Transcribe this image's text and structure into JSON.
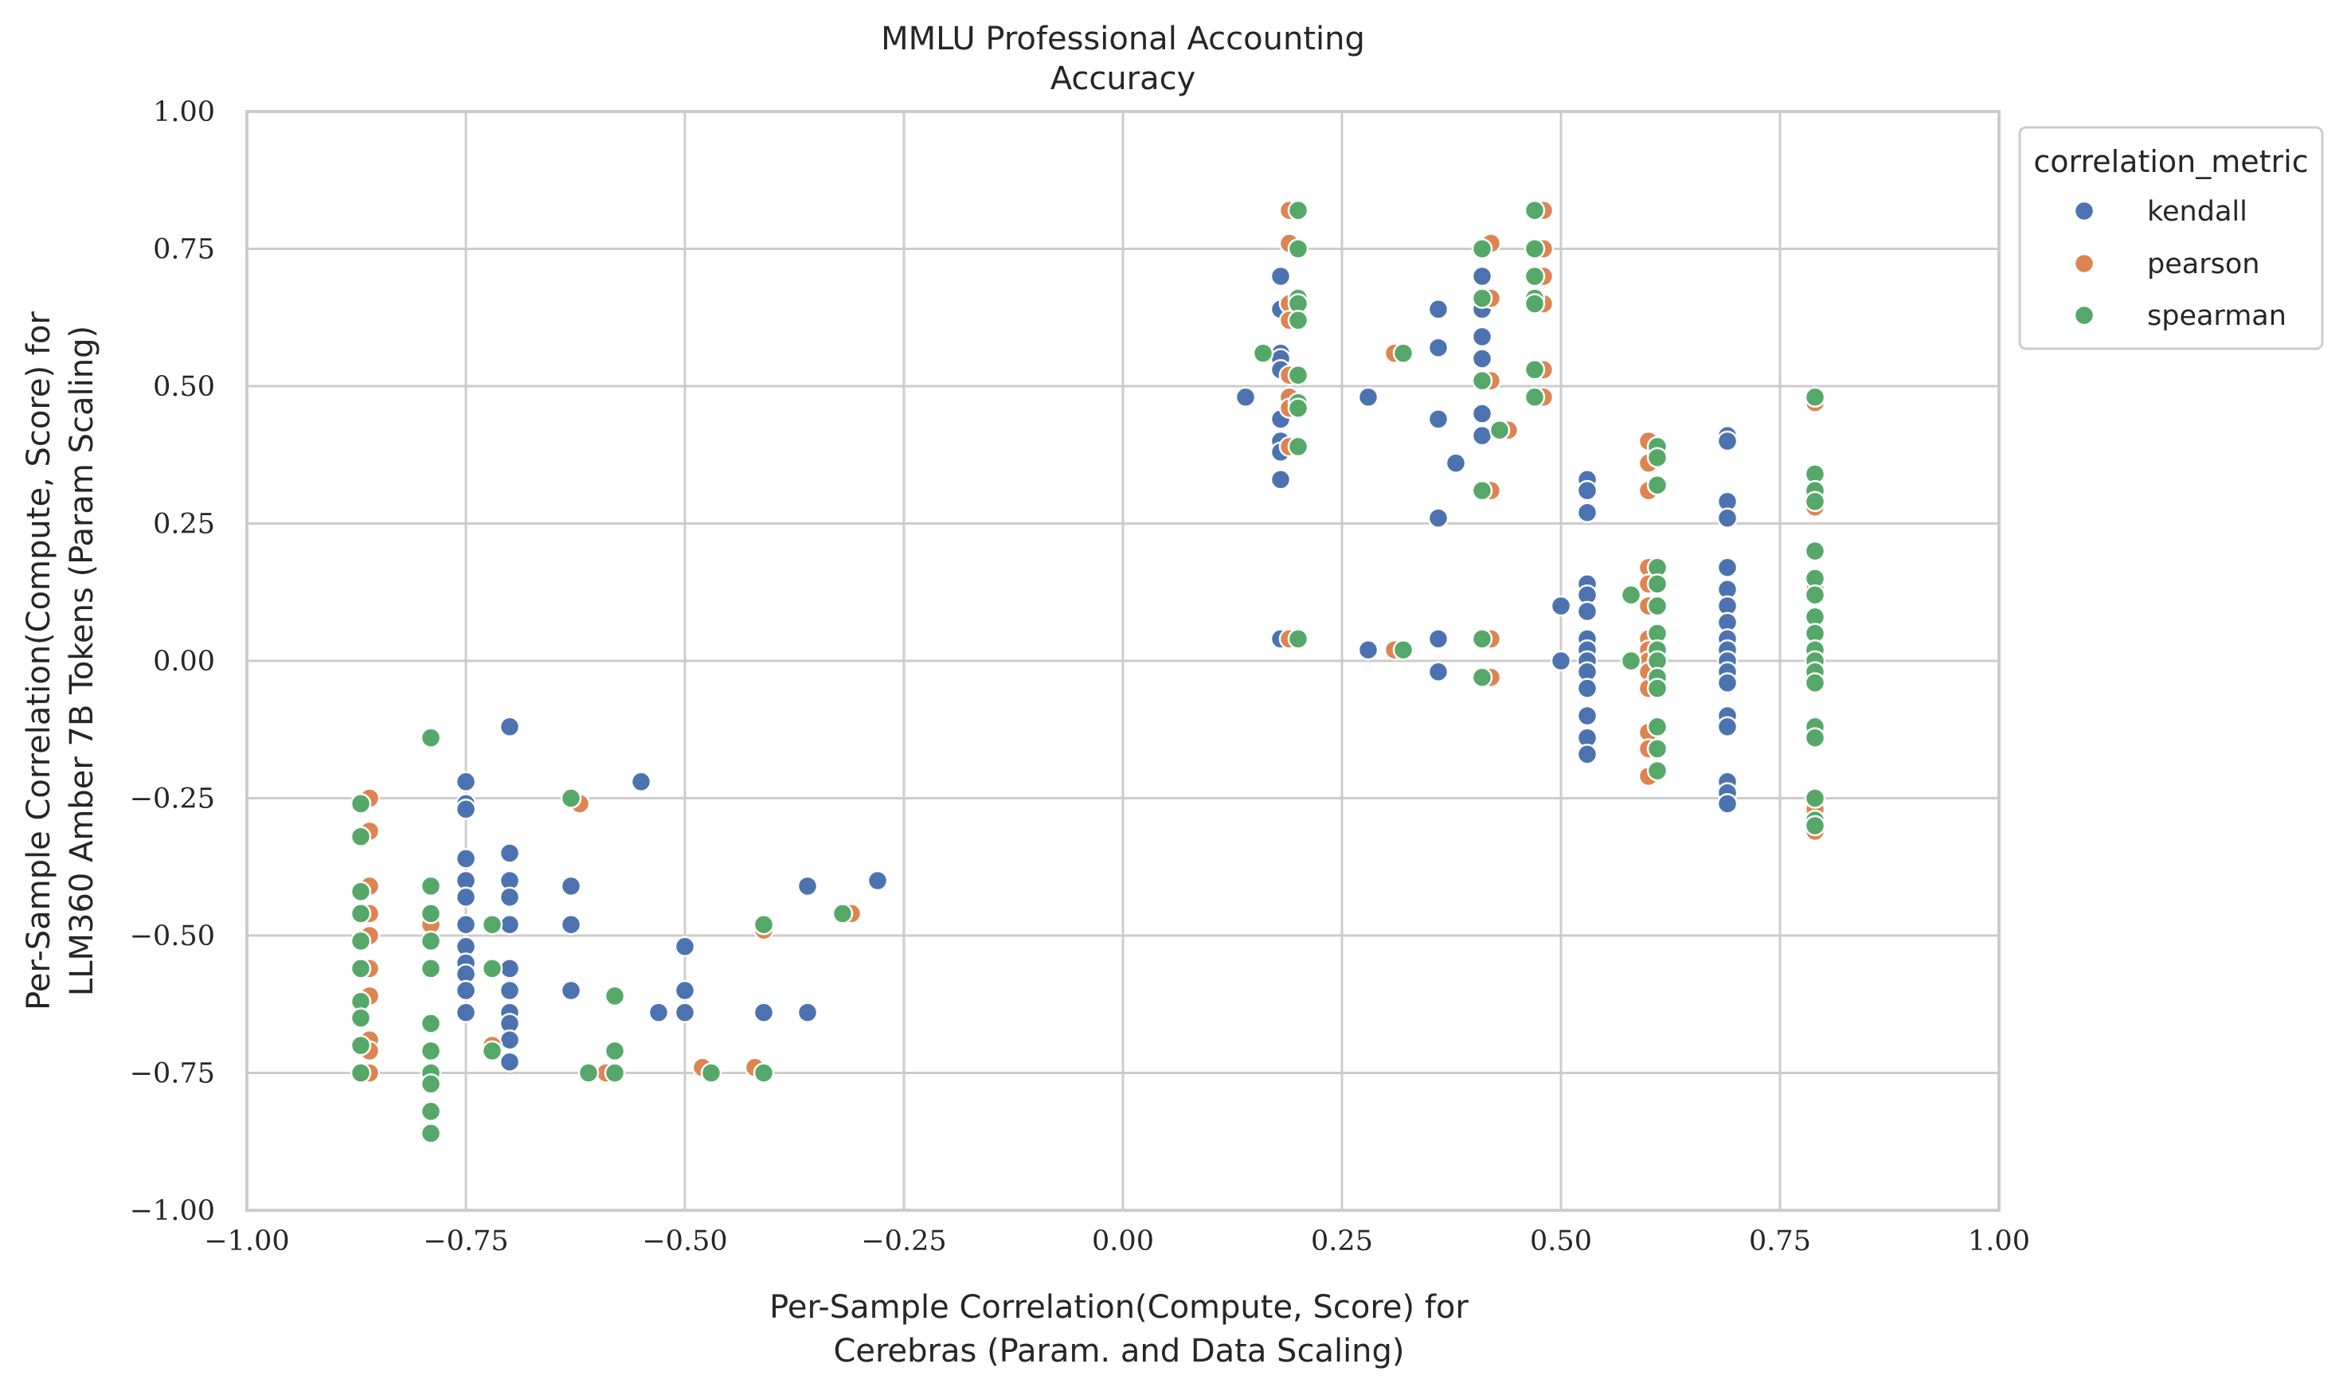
{
  "chart_data": {
    "type": "scatter",
    "title": [
      "MMLU Professional Accounting",
      "Accuracy"
    ],
    "xlabel": [
      "Per-Sample Correlation(Compute, Score) for",
      "Cerebras (Param. and Data Scaling)"
    ],
    "ylabel": [
      "Per-Sample Correlation(Compute, Score) for",
      "LLM360 Amber 7B Tokens (Param Scaling)"
    ],
    "xlim": [
      -1.0,
      1.0
    ],
    "ylim": [
      -1.0,
      1.0
    ],
    "xticks": [
      -1.0,
      -0.75,
      -0.5,
      -0.25,
      0.0,
      0.25,
      0.5,
      0.75,
      1.0
    ],
    "yticks": [
      -1.0,
      -0.75,
      -0.5,
      -0.25,
      0.0,
      0.25,
      0.5,
      0.75,
      1.0
    ],
    "xtick_labels": [
      "−1.00",
      "−0.75",
      "−0.50",
      "−0.25",
      "0.00",
      "0.25",
      "0.50",
      "0.75",
      "1.00"
    ],
    "ytick_labels": [
      "−1.00",
      "−0.75",
      "−0.50",
      "−0.25",
      "0.00",
      "0.25",
      "0.50",
      "0.75",
      "1.00"
    ],
    "grid": true,
    "legend": {
      "title": "correlation_metric",
      "placement": "outside-top-right"
    },
    "series": [
      {
        "name": "kendall",
        "color": "#4c72b0",
        "points": [
          [
            -0.75,
            -0.22
          ],
          [
            -0.75,
            -0.26
          ],
          [
            -0.75,
            -0.27
          ],
          [
            -0.75,
            -0.36
          ],
          [
            -0.75,
            -0.4
          ],
          [
            -0.75,
            -0.43
          ],
          [
            -0.75,
            -0.48
          ],
          [
            -0.75,
            -0.52
          ],
          [
            -0.75,
            -0.55
          ],
          [
            -0.75,
            -0.57
          ],
          [
            -0.75,
            -0.6
          ],
          [
            -0.75,
            -0.64
          ],
          [
            -0.7,
            -0.12
          ],
          [
            -0.7,
            -0.35
          ],
          [
            -0.7,
            -0.4
          ],
          [
            -0.7,
            -0.43
          ],
          [
            -0.7,
            -0.48
          ],
          [
            -0.7,
            -0.56
          ],
          [
            -0.7,
            -0.6
          ],
          [
            -0.7,
            -0.64
          ],
          [
            -0.7,
            -0.66
          ],
          [
            -0.7,
            -0.69
          ],
          [
            -0.7,
            -0.73
          ],
          [
            -0.63,
            -0.41
          ],
          [
            -0.63,
            -0.48
          ],
          [
            -0.63,
            -0.6
          ],
          [
            -0.55,
            -0.22
          ],
          [
            -0.53,
            -0.64
          ],
          [
            -0.5,
            -0.52
          ],
          [
            -0.5,
            -0.6
          ],
          [
            -0.5,
            -0.64
          ],
          [
            -0.41,
            -0.64
          ],
          [
            -0.36,
            -0.41
          ],
          [
            -0.36,
            -0.64
          ],
          [
            -0.28,
            -0.4
          ],
          [
            0.14,
            0.48
          ],
          [
            0.18,
            0.7
          ],
          [
            0.18,
            0.64
          ],
          [
            0.18,
            0.56
          ],
          [
            0.18,
            0.55
          ],
          [
            0.18,
            0.53
          ],
          [
            0.18,
            0.44
          ],
          [
            0.18,
            0.4
          ],
          [
            0.18,
            0.38
          ],
          [
            0.18,
            0.33
          ],
          [
            0.18,
            0.04
          ],
          [
            0.28,
            0.48
          ],
          [
            0.28,
            0.02
          ],
          [
            0.36,
            0.64
          ],
          [
            0.36,
            0.57
          ],
          [
            0.36,
            0.44
          ],
          [
            0.36,
            0.26
          ],
          [
            0.36,
            0.04
          ],
          [
            0.36,
            -0.02
          ],
          [
            0.38,
            0.36
          ],
          [
            0.41,
            0.7
          ],
          [
            0.41,
            0.64
          ],
          [
            0.41,
            0.59
          ],
          [
            0.41,
            0.55
          ],
          [
            0.41,
            0.45
          ],
          [
            0.41,
            0.41
          ],
          [
            0.5,
            0.1
          ],
          [
            0.5,
            0.0
          ],
          [
            0.53,
            0.33
          ],
          [
            0.53,
            0.31
          ],
          [
            0.53,
            0.27
          ],
          [
            0.53,
            0.14
          ],
          [
            0.53,
            0.12
          ],
          [
            0.53,
            0.09
          ],
          [
            0.53,
            0.04
          ],
          [
            0.53,
            0.02
          ],
          [
            0.53,
            0.0
          ],
          [
            0.53,
            -0.02
          ],
          [
            0.53,
            -0.05
          ],
          [
            0.53,
            -0.1
          ],
          [
            0.53,
            -0.14
          ],
          [
            0.53,
            -0.17
          ],
          [
            0.69,
            0.41
          ],
          [
            0.69,
            0.4
          ],
          [
            0.69,
            0.29
          ],
          [
            0.69,
            0.26
          ],
          [
            0.69,
            0.17
          ],
          [
            0.69,
            0.13
          ],
          [
            0.69,
            0.1
          ],
          [
            0.69,
            0.07
          ],
          [
            0.69,
            0.04
          ],
          [
            0.69,
            0.02
          ],
          [
            0.69,
            0.0
          ],
          [
            0.69,
            -0.02
          ],
          [
            0.69,
            -0.04
          ],
          [
            0.69,
            -0.1
          ],
          [
            0.69,
            -0.12
          ],
          [
            0.69,
            -0.22
          ],
          [
            0.69,
            -0.24
          ],
          [
            0.69,
            -0.26
          ]
        ]
      },
      {
        "name": "pearson",
        "color": "#dd8452",
        "points": [
          [
            -0.86,
            -0.25
          ],
          [
            -0.86,
            -0.31
          ],
          [
            -0.86,
            -0.41
          ],
          [
            -0.86,
            -0.46
          ],
          [
            -0.86,
            -0.5
          ],
          [
            -0.86,
            -0.56
          ],
          [
            -0.86,
            -0.61
          ],
          [
            -0.86,
            -0.69
          ],
          [
            -0.86,
            -0.71
          ],
          [
            -0.86,
            -0.75
          ],
          [
            -0.79,
            -0.14
          ],
          [
            -0.79,
            -0.41
          ],
          [
            -0.79,
            -0.48
          ],
          [
            -0.79,
            -0.66
          ],
          [
            -0.79,
            -0.76
          ],
          [
            -0.72,
            -0.7
          ],
          [
            -0.62,
            -0.26
          ],
          [
            -0.59,
            -0.75
          ],
          [
            -0.58,
            -0.61
          ],
          [
            -0.58,
            -0.71
          ],
          [
            -0.48,
            -0.74
          ],
          [
            -0.42,
            -0.74
          ],
          [
            -0.41,
            -0.49
          ],
          [
            -0.31,
            -0.46
          ],
          [
            0.19,
            0.82
          ],
          [
            0.19,
            0.76
          ],
          [
            0.19,
            0.65
          ],
          [
            0.19,
            0.62
          ],
          [
            0.19,
            0.52
          ],
          [
            0.19,
            0.48
          ],
          [
            0.19,
            0.46
          ],
          [
            0.19,
            0.39
          ],
          [
            0.19,
            0.04
          ],
          [
            0.31,
            0.56
          ],
          [
            0.31,
            0.02
          ],
          [
            0.42,
            0.76
          ],
          [
            0.42,
            0.66
          ],
          [
            0.42,
            0.51
          ],
          [
            0.42,
            0.31
          ],
          [
            0.42,
            0.04
          ],
          [
            0.42,
            -0.03
          ],
          [
            0.44,
            0.42
          ],
          [
            0.48,
            0.82
          ],
          [
            0.48,
            0.75
          ],
          [
            0.48,
            0.7
          ],
          [
            0.48,
            0.65
          ],
          [
            0.48,
            0.53
          ],
          [
            0.48,
            0.48
          ],
          [
            0.6,
            0.4
          ],
          [
            0.6,
            0.36
          ],
          [
            0.6,
            0.31
          ],
          [
            0.6,
            0.17
          ],
          [
            0.6,
            0.14
          ],
          [
            0.6,
            0.1
          ],
          [
            0.6,
            0.04
          ],
          [
            0.6,
            0.02
          ],
          [
            0.6,
            0.0
          ],
          [
            0.6,
            -0.02
          ],
          [
            0.6,
            -0.05
          ],
          [
            0.6,
            -0.13
          ],
          [
            0.6,
            -0.16
          ],
          [
            0.6,
            -0.21
          ],
          [
            0.79,
            0.47
          ],
          [
            0.79,
            0.28
          ],
          [
            0.79,
            0.13
          ],
          [
            0.79,
            0.02
          ],
          [
            0.79,
            -0.04
          ],
          [
            0.79,
            -0.14
          ],
          [
            0.79,
            -0.27
          ],
          [
            0.79,
            -0.31
          ]
        ]
      },
      {
        "name": "spearman",
        "color": "#55a868",
        "points": [
          [
            -0.87,
            -0.26
          ],
          [
            -0.87,
            -0.32
          ],
          [
            -0.87,
            -0.42
          ],
          [
            -0.87,
            -0.46
          ],
          [
            -0.87,
            -0.51
          ],
          [
            -0.87,
            -0.56
          ],
          [
            -0.87,
            -0.62
          ],
          [
            -0.87,
            -0.65
          ],
          [
            -0.87,
            -0.7
          ],
          [
            -0.87,
            -0.75
          ],
          [
            -0.79,
            -0.14
          ],
          [
            -0.79,
            -0.41
          ],
          [
            -0.79,
            -0.46
          ],
          [
            -0.79,
            -0.51
          ],
          [
            -0.79,
            -0.56
          ],
          [
            -0.79,
            -0.66
          ],
          [
            -0.79,
            -0.71
          ],
          [
            -0.79,
            -0.75
          ],
          [
            -0.79,
            -0.77
          ],
          [
            -0.79,
            -0.82
          ],
          [
            -0.79,
            -0.86
          ],
          [
            -0.72,
            -0.48
          ],
          [
            -0.72,
            -0.56
          ],
          [
            -0.72,
            -0.71
          ],
          [
            -0.63,
            -0.25
          ],
          [
            -0.61,
            -0.75
          ],
          [
            -0.58,
            -0.61
          ],
          [
            -0.58,
            -0.71
          ],
          [
            -0.58,
            -0.75
          ],
          [
            -0.47,
            -0.75
          ],
          [
            -0.41,
            -0.48
          ],
          [
            -0.41,
            -0.75
          ],
          [
            -0.32,
            -0.46
          ],
          [
            0.16,
            0.56
          ],
          [
            0.2,
            0.82
          ],
          [
            0.2,
            0.75
          ],
          [
            0.2,
            0.66
          ],
          [
            0.2,
            0.65
          ],
          [
            0.2,
            0.62
          ],
          [
            0.2,
            0.52
          ],
          [
            0.2,
            0.47
          ],
          [
            0.2,
            0.46
          ],
          [
            0.2,
            0.39
          ],
          [
            0.2,
            0.04
          ],
          [
            0.32,
            0.56
          ],
          [
            0.32,
            0.02
          ],
          [
            0.41,
            0.75
          ],
          [
            0.41,
            0.66
          ],
          [
            0.41,
            0.51
          ],
          [
            0.41,
            0.31
          ],
          [
            0.41,
            0.04
          ],
          [
            0.41,
            -0.03
          ],
          [
            0.43,
            0.42
          ],
          [
            0.47,
            0.82
          ],
          [
            0.47,
            0.75
          ],
          [
            0.47,
            0.7
          ],
          [
            0.47,
            0.66
          ],
          [
            0.47,
            0.65
          ],
          [
            0.47,
            0.53
          ],
          [
            0.47,
            0.48
          ],
          [
            0.58,
            0.12
          ],
          [
            0.58,
            0.0
          ],
          [
            0.61,
            0.39
          ],
          [
            0.61,
            0.37
          ],
          [
            0.61,
            0.32
          ],
          [
            0.61,
            0.17
          ],
          [
            0.61,
            0.14
          ],
          [
            0.61,
            0.1
          ],
          [
            0.61,
            0.05
          ],
          [
            0.61,
            0.02
          ],
          [
            0.61,
            0.0
          ],
          [
            0.61,
            -0.03
          ],
          [
            0.61,
            -0.05
          ],
          [
            0.61,
            -0.12
          ],
          [
            0.61,
            -0.16
          ],
          [
            0.61,
            -0.2
          ],
          [
            0.79,
            0.48
          ],
          [
            0.79,
            0.34
          ],
          [
            0.79,
            0.31
          ],
          [
            0.79,
            0.29
          ],
          [
            0.79,
            0.2
          ],
          [
            0.79,
            0.15
          ],
          [
            0.79,
            0.12
          ],
          [
            0.79,
            0.08
          ],
          [
            0.79,
            0.05
          ],
          [
            0.79,
            0.02
          ],
          [
            0.79,
            0.0
          ],
          [
            0.79,
            -0.02
          ],
          [
            0.79,
            -0.04
          ],
          [
            0.79,
            -0.12
          ],
          [
            0.79,
            -0.14
          ],
          [
            0.79,
            -0.25
          ],
          [
            0.79,
            -0.29
          ],
          [
            0.79,
            -0.3
          ]
        ]
      }
    ]
  }
}
